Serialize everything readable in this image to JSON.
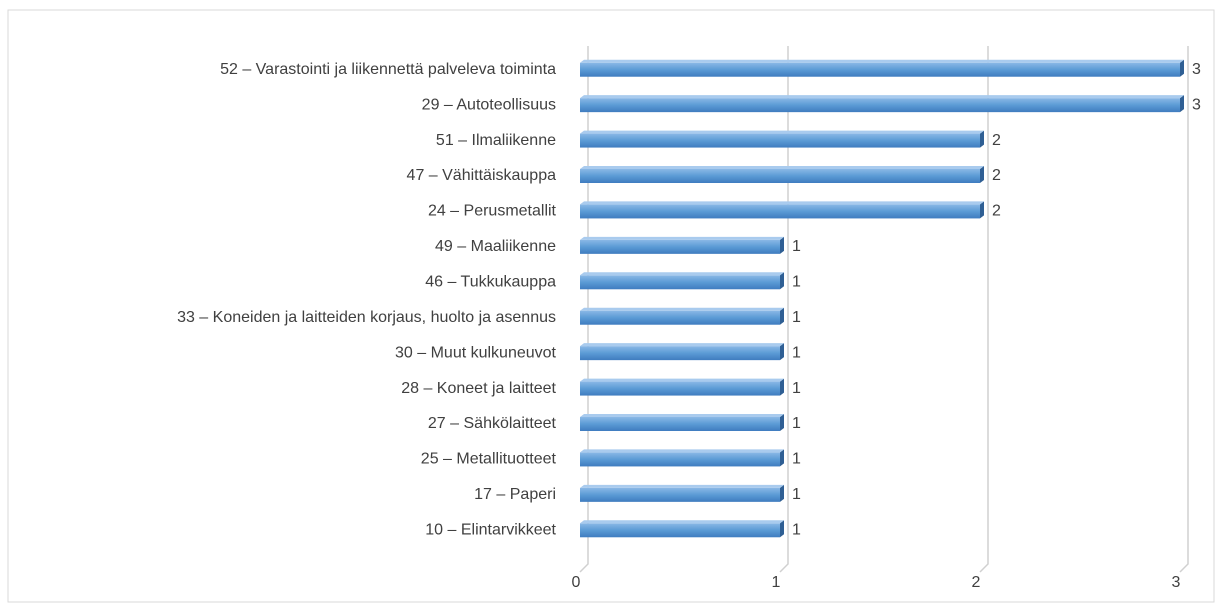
{
  "chart_data": {
    "type": "bar",
    "orientation": "horizontal",
    "categories": [
      "52 – Varastointi ja liikennettä palveleva toiminta",
      "29 – Autoteollisuus",
      "51 – Ilmaliikenne",
      "47 – Vähittäiskauppa",
      "24 – Perusmetallit",
      "49 – Maaliikenne",
      "46 – Tukkukauppa",
      "33 – Koneiden ja laitteiden korjaus, huolto ja asennus",
      "30 – Muut kulkuneuvot",
      "28 – Koneet ja laitteet",
      "27 – Sähkölaitteet",
      "25 – Metallituotteet",
      "17 – Paperi",
      "10 – Elintarvikkeet"
    ],
    "values": [
      3,
      3,
      2,
      2,
      2,
      1,
      1,
      1,
      1,
      1,
      1,
      1,
      1,
      1
    ],
    "color": "#5b9bd5",
    "xlim": [
      0,
      3
    ],
    "xticks": [
      0,
      1,
      2,
      3
    ],
    "grid": true
  }
}
